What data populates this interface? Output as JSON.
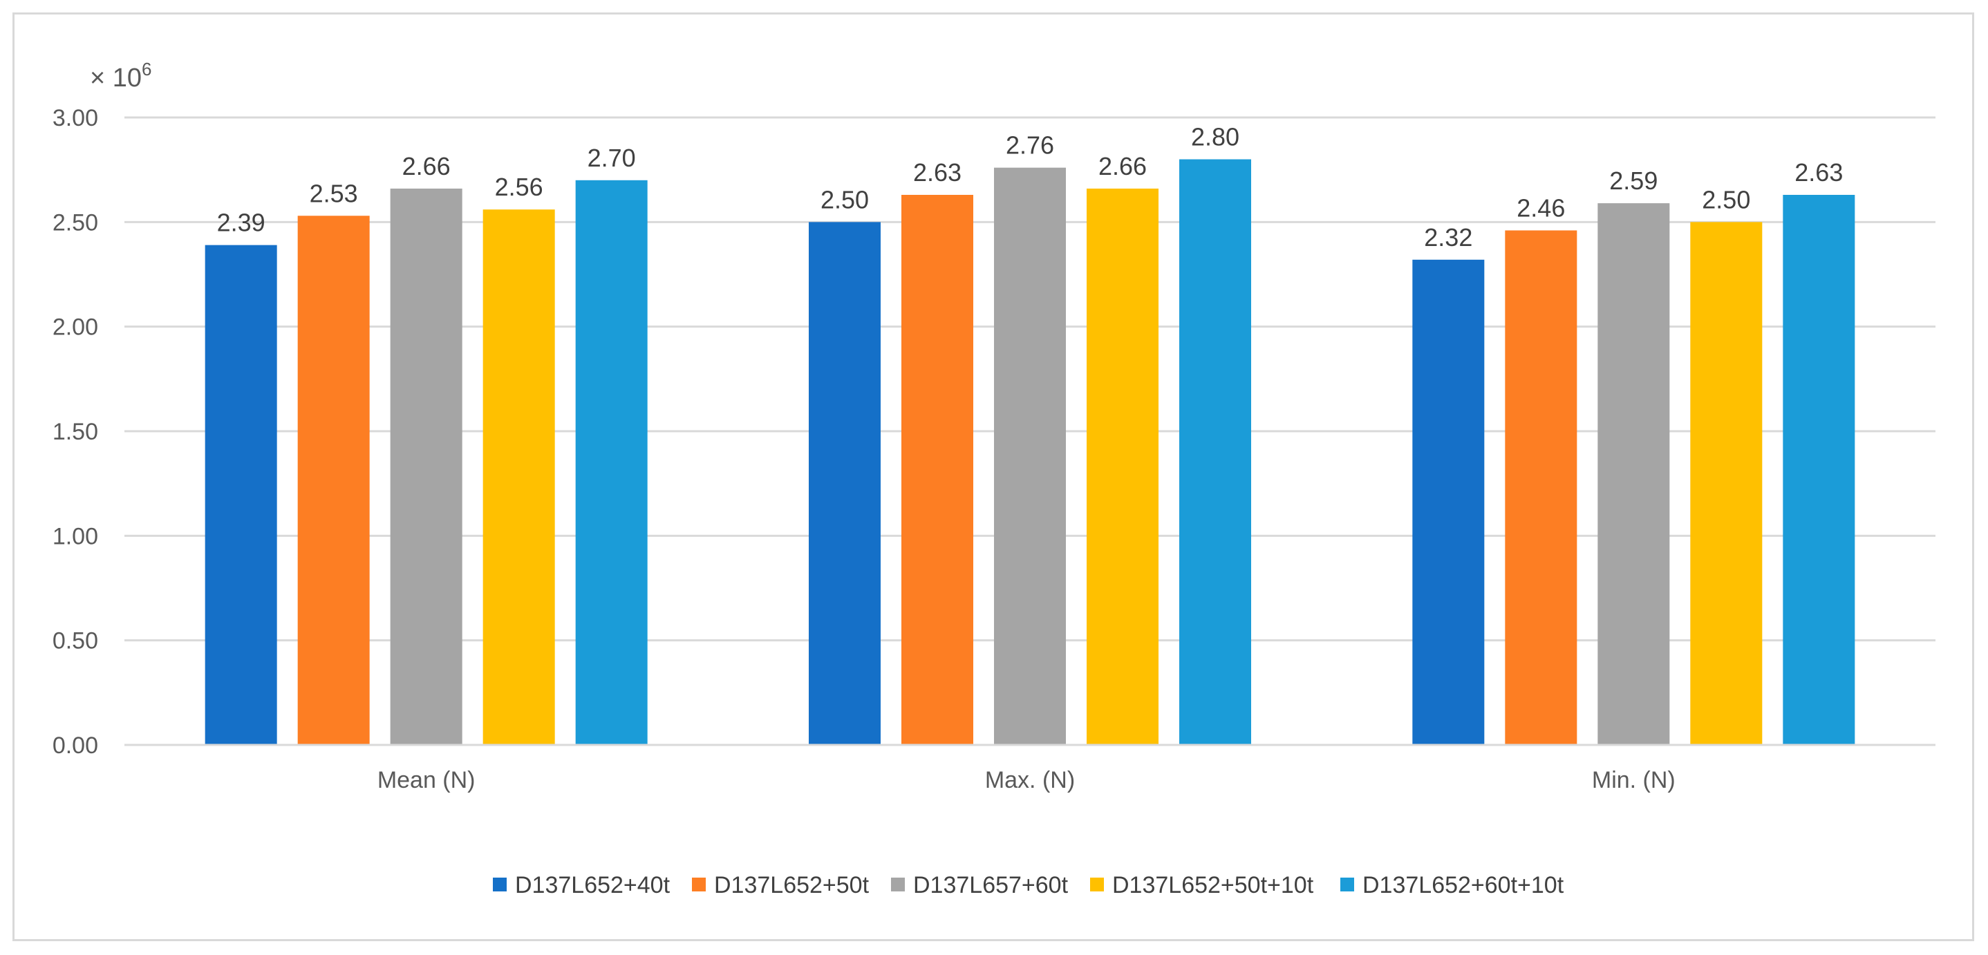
{
  "chart_data": {
    "type": "bar",
    "scale_label": {
      "prefix": "× 10",
      "exponent": "6"
    },
    "categories": [
      "Mean (N)",
      "Max. (N)",
      "Min. (N)"
    ],
    "series": [
      {
        "name": "D137L652+40t",
        "color": "#1570c8",
        "values": [
          2.39,
          2.5,
          2.32
        ],
        "labels": [
          "2.39",
          "2.50",
          "2.32"
        ]
      },
      {
        "name": "D137L652+50t",
        "color": "#fd7e23",
        "values": [
          2.53,
          2.63,
          2.46
        ],
        "labels": [
          "2.53",
          "2.63",
          "2.46"
        ]
      },
      {
        "name": "D137L657+60t",
        "color": "#a5a5a5",
        "values": [
          2.66,
          2.76,
          2.59
        ],
        "labels": [
          "2.66",
          "2.76",
          "2.59"
        ]
      },
      {
        "name": "D137L652+50t+10t",
        "color": "#ffc000",
        "values": [
          2.56,
          2.66,
          2.5
        ],
        "labels": [
          "2.56",
          "2.66",
          "2.50"
        ]
      },
      {
        "name": "D137L652+60t+10t",
        "color": "#1b9cd8",
        "values": [
          2.7,
          2.8,
          2.63
        ],
        "labels": [
          "2.70",
          "2.80",
          "2.63"
        ]
      }
    ],
    "ylim": [
      0,
      3
    ],
    "yticks": [
      0,
      0.5,
      1,
      1.5,
      2,
      2.5,
      3
    ],
    "ytick_labels": [
      "0.00",
      "0.50",
      "1.00",
      "1.50",
      "2.00",
      "2.50",
      "3.00"
    ],
    "grid": true,
    "legend_position": "bottom",
    "gridline_color": "#d9d9d9",
    "axis_color": "#d9d9d9"
  }
}
